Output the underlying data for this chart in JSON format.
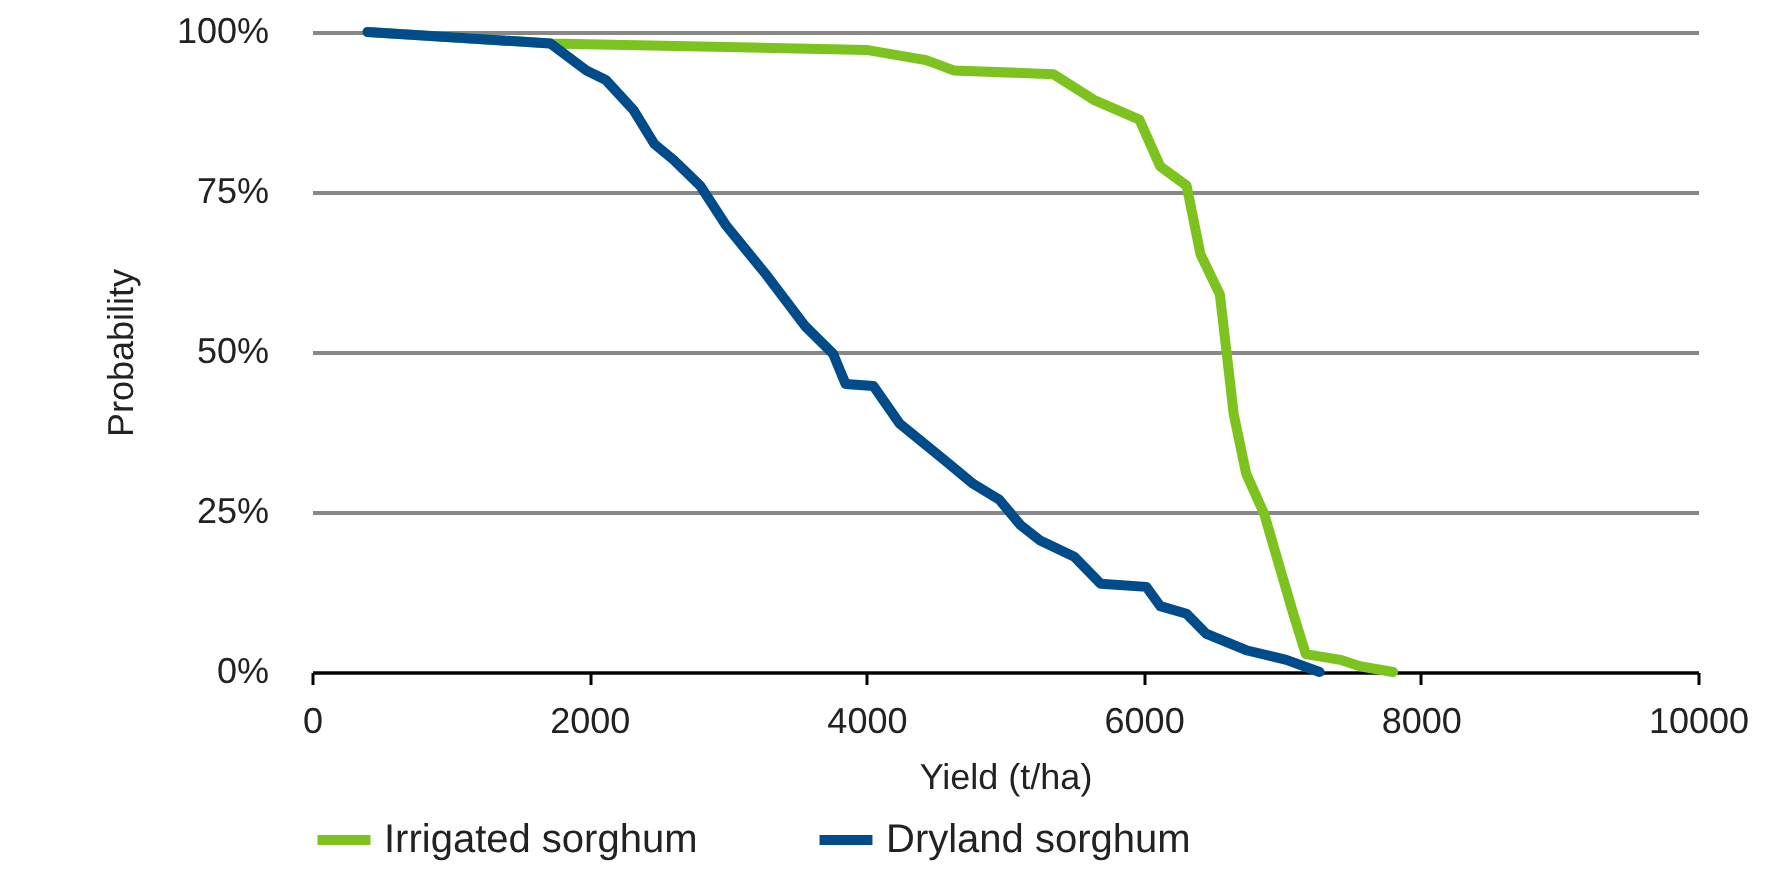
{
  "chart_data": {
    "type": "line",
    "xlabel": "Yield (t/ha)",
    "ylabel": "Probability",
    "xlim": [
      0,
      10000
    ],
    "xticks": [
      0,
      2000,
      4000,
      6000,
      8000,
      10000
    ],
    "ylim": [
      0,
      100
    ],
    "yticks": [
      {
        "value": 0,
        "label": "0%"
      },
      {
        "value": 25,
        "label": "25%"
      },
      {
        "value": 50,
        "label": "50%"
      },
      {
        "value": 75,
        "label": "75%"
      },
      {
        "value": 100,
        "label": "100%"
      }
    ],
    "grid": "y",
    "legend": "bottom",
    "line_style": "solid",
    "series": [
      {
        "name": "Irrigated sorghum",
        "color": "#7dc31f",
        "x": [
          400,
          1720,
          4000,
          4430,
          4630,
          5350,
          5640,
          5970,
          6120,
          6310,
          6410,
          6550,
          6600,
          6650,
          6740,
          6870,
          6980,
          7080,
          7170,
          7420,
          7560,
          7800
        ],
        "values": [
          100,
          98.2,
          97.2,
          95.6,
          94,
          93.4,
          89.4,
          86.3,
          79,
          76,
          65.3,
          59,
          49.7,
          40.3,
          31,
          24.7,
          16.5,
          9.1,
          2.8,
          1.9,
          0.9,
          0
        ]
      },
      {
        "name": "Dryland sorghum",
        "color": "#004c8a",
        "x": [
          400,
          1720,
          1980,
          2120,
          2320,
          2470,
          2610,
          2800,
          2990,
          3280,
          3560,
          3760,
          3850,
          4050,
          4240,
          4570,
          4770,
          4960,
          5110,
          5250,
          5500,
          5690,
          6020,
          6120,
          6310,
          6450,
          6740,
          7030,
          7270
        ],
        "values": [
          100,
          98.2,
          94,
          92.5,
          87.8,
          82.5,
          80,
          76,
          69.7,
          62,
          54,
          49.7,
          45,
          44.7,
          38.8,
          33,
          29.4,
          26.9,
          23,
          20.6,
          18,
          13.8,
          13.3,
          10.3,
          9.1,
          6,
          3.4,
          1.9,
          0
        ]
      }
    ]
  }
}
